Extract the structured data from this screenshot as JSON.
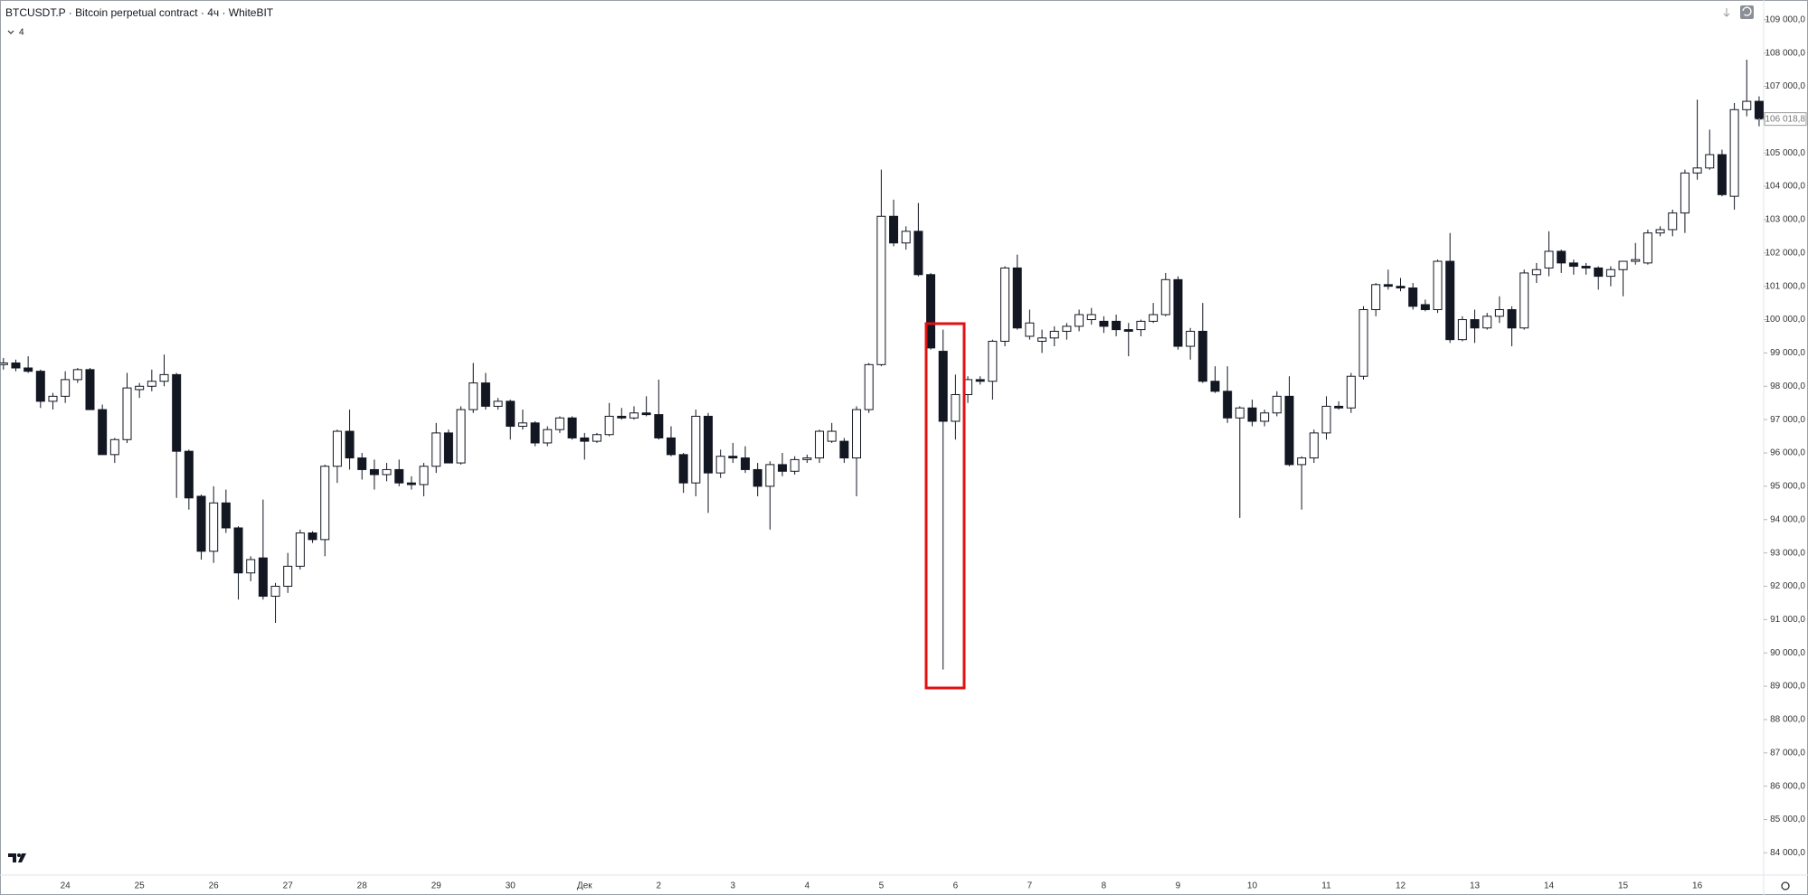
{
  "header": {
    "title": "BTCUSDT.P · Bitcoin perpetual contract · 4ч · WhiteBIT",
    "indicators": "4"
  },
  "chart_data": {
    "type": "candlestick",
    "grid": false,
    "up_color": "#ffffff",
    "down_color": "#131722",
    "wick_color": "#131722",
    "categories": [
      null,
      null,
      null,
      null,
      null,
      "24",
      null,
      null,
      null,
      null,
      null,
      "25",
      null,
      null,
      null,
      null,
      null,
      "26",
      null,
      null,
      null,
      null,
      null,
      "27",
      null,
      null,
      null,
      null,
      null,
      "28",
      null,
      null,
      null,
      null,
      null,
      "29",
      null,
      null,
      null,
      null,
      null,
      "30",
      null,
      null,
      null,
      null,
      null,
      "Дек",
      null,
      null,
      null,
      null,
      null,
      "2",
      null,
      null,
      null,
      null,
      null,
      "3",
      null,
      null,
      null,
      null,
      null,
      "4",
      null,
      null,
      null,
      null,
      null,
      "5",
      null,
      null,
      null,
      null,
      null,
      "6",
      null,
      null,
      null,
      null,
      null,
      "7",
      null,
      null,
      null,
      null,
      null,
      "8",
      null,
      null,
      null,
      null,
      null,
      "9",
      null,
      null,
      null,
      null,
      null,
      "10",
      null,
      null,
      null,
      null,
      null,
      "11",
      null,
      null,
      null,
      null,
      null,
      "12",
      null,
      null,
      null,
      null,
      null,
      "13",
      null,
      null,
      null,
      null,
      null,
      "14",
      null,
      null,
      null,
      null,
      null,
      "15",
      null,
      null,
      null,
      null,
      null,
      "16",
      null,
      null,
      null,
      null,
      null
    ],
    "ohlc": [
      [
        98650,
        98850,
        98500,
        98700
      ],
      [
        98700,
        98800,
        98450,
        98550
      ],
      [
        98550,
        98900,
        98400,
        98450
      ],
      [
        98450,
        98500,
        97350,
        97550
      ],
      [
        97550,
        97800,
        97300,
        97700
      ],
      [
        97700,
        98450,
        97500,
        98200
      ],
      [
        98200,
        98550,
        98100,
        98500
      ],
      [
        98500,
        98550,
        97300,
        97300
      ],
      [
        97300,
        97450,
        95950,
        95950
      ],
      [
        95950,
        96450,
        95700,
        96400
      ],
      [
        96400,
        98400,
        96300,
        97950
      ],
      [
        97900,
        98100,
        97650,
        98000
      ],
      [
        98000,
        98500,
        97850,
        98150
      ],
      [
        98150,
        98950,
        98000,
        98350
      ],
      [
        98350,
        98400,
        94650,
        96050
      ],
      [
        96050,
        96100,
        94300,
        94650
      ],
      [
        94700,
        94750,
        92800,
        93050
      ],
      [
        93050,
        95000,
        92700,
        94500
      ],
      [
        94500,
        94900,
        93600,
        93750
      ],
      [
        93750,
        93800,
        91600,
        92400
      ],
      [
        92400,
        92900,
        92150,
        92800
      ],
      [
        92850,
        94600,
        91600,
        91700
      ],
      [
        91700,
        92100,
        90900,
        92000
      ],
      [
        92000,
        93000,
        91800,
        92600
      ],
      [
        92600,
        93700,
        92500,
        93600
      ],
      [
        93600,
        93650,
        93300,
        93400
      ],
      [
        93400,
        95650,
        92900,
        95600
      ],
      [
        95600,
        96700,
        95100,
        96650
      ],
      [
        96650,
        97300,
        95500,
        95850
      ],
      [
        95850,
        96000,
        95200,
        95500
      ],
      [
        95500,
        95800,
        94900,
        95350
      ],
      [
        95350,
        95700,
        95150,
        95500
      ],
      [
        95500,
        95800,
        95000,
        95100
      ],
      [
        95100,
        95300,
        94900,
        95050
      ],
      [
        95050,
        95700,
        94700,
        95600
      ],
      [
        95600,
        96900,
        95400,
        96600
      ],
      [
        96600,
        96700,
        95700,
        95700
      ],
      [
        95700,
        97400,
        95650,
        97300
      ],
      [
        97300,
        98700,
        97200,
        98100
      ],
      [
        98100,
        98400,
        97300,
        97400
      ],
      [
        97400,
        97650,
        97300,
        97550
      ],
      [
        97550,
        97600,
        96400,
        96800
      ],
      [
        96800,
        97300,
        96700,
        96900
      ],
      [
        96900,
        96950,
        96200,
        96300
      ],
      [
        96300,
        96800,
        96200,
        96700
      ],
      [
        96700,
        97100,
        96600,
        97050
      ],
      [
        97050,
        97100,
        96400,
        96450
      ],
      [
        96450,
        96600,
        95800,
        96350
      ],
      [
        96350,
        96600,
        96300,
        96550
      ],
      [
        96550,
        97500,
        96500,
        97100
      ],
      [
        97100,
        97350,
        97000,
        97050
      ],
      [
        97050,
        97400,
        97000,
        97200
      ],
      [
        97200,
        97700,
        97100,
        97150
      ],
      [
        97150,
        98200,
        96400,
        96450
      ],
      [
        96450,
        96800,
        95900,
        95950
      ],
      [
        95950,
        96000,
        94800,
        95100
      ],
      [
        95100,
        97300,
        94700,
        97100
      ],
      [
        97100,
        97200,
        94200,
        95400
      ],
      [
        95400,
        96100,
        95250,
        95900
      ],
      [
        95900,
        96300,
        95700,
        95850
      ],
      [
        95850,
        96200,
        95400,
        95500
      ],
      [
        95500,
        95700,
        94700,
        95000
      ],
      [
        95000,
        95750,
        93700,
        95650
      ],
      [
        95650,
        96000,
        95300,
        95450
      ],
      [
        95450,
        95900,
        95350,
        95800
      ],
      [
        95800,
        95950,
        95700,
        95850
      ],
      [
        95850,
        96700,
        95700,
        96650
      ],
      [
        96350,
        96900,
        96300,
        96650
      ],
      [
        96350,
        96450,
        95700,
        95850
      ],
      [
        95850,
        97400,
        94700,
        97300
      ],
      [
        97300,
        98700,
        97200,
        98650
      ],
      [
        98650,
        104500,
        98600,
        103100
      ],
      [
        103100,
        103600,
        102200,
        102300
      ],
      [
        102300,
        102800,
        102100,
        102650
      ],
      [
        102650,
        103500,
        101300,
        101350
      ],
      [
        101350,
        101400,
        99100,
        99150
      ],
      [
        99050,
        99700,
        89500,
        96950
      ],
      [
        96950,
        98350,
        96400,
        97750
      ],
      [
        97750,
        98300,
        97500,
        98200
      ],
      [
        98200,
        98300,
        98050,
        98150
      ],
      [
        98150,
        99400,
        97600,
        99350
      ],
      [
        99350,
        101600,
        99200,
        101550
      ],
      [
        101550,
        101950,
        99700,
        99750
      ],
      [
        99500,
        100300,
        99400,
        99900
      ],
      [
        99350,
        99700,
        99000,
        99450
      ],
      [
        99450,
        99800,
        99200,
        99650
      ],
      [
        99650,
        99900,
        99400,
        99800
      ],
      [
        99800,
        100300,
        99650,
        100150
      ],
      [
        100000,
        100350,
        99850,
        100150
      ],
      [
        99950,
        100100,
        99600,
        99800
      ],
      [
        99950,
        100150,
        99500,
        99700
      ],
      [
        99700,
        99900,
        98900,
        99650
      ],
      [
        99700,
        100000,
        99500,
        99950
      ],
      [
        99950,
        100500,
        99900,
        100150
      ],
      [
        100150,
        101400,
        100100,
        101200
      ],
      [
        101200,
        101300,
        99100,
        99200
      ],
      [
        99200,
        99750,
        98800,
        99650
      ],
      [
        99650,
        100500,
        98100,
        98150
      ],
      [
        98150,
        98600,
        97800,
        97850
      ],
      [
        97850,
        98600,
        96900,
        97050
      ],
      [
        97050,
        97400,
        94050,
        97350
      ],
      [
        97350,
        97600,
        96800,
        96950
      ],
      [
        96950,
        97300,
        96800,
        97200
      ],
      [
        97200,
        97850,
        97100,
        97700
      ],
      [
        97700,
        98300,
        95600,
        95650
      ],
      [
        95650,
        95900,
        94300,
        95850
      ],
      [
        95850,
        96700,
        95700,
        96600
      ],
      [
        96600,
        97700,
        96400,
        97400
      ],
      [
        97400,
        97550,
        97300,
        97350
      ],
      [
        97350,
        98400,
        97200,
        98300
      ],
      [
        98300,
        100400,
        98200,
        100300
      ],
      [
        100300,
        101100,
        100100,
        101050
      ],
      [
        101050,
        101500,
        100900,
        101000
      ],
      [
        101000,
        101250,
        100850,
        100950
      ],
      [
        100950,
        101100,
        100300,
        100400
      ],
      [
        100450,
        100600,
        100250,
        100300
      ],
      [
        100300,
        101800,
        100200,
        101750
      ],
      [
        101750,
        102600,
        99300,
        99400
      ],
      [
        99400,
        100100,
        99350,
        100000
      ],
      [
        100000,
        100300,
        99300,
        99750
      ],
      [
        99750,
        100200,
        99700,
        100100
      ],
      [
        100100,
        100700,
        99900,
        100300
      ],
      [
        100300,
        100400,
        99200,
        99750
      ],
      [
        99750,
        101500,
        99700,
        101400
      ],
      [
        101350,
        101700,
        101100,
        101500
      ],
      [
        101550,
        102650,
        101300,
        102050
      ],
      [
        102050,
        102100,
        101400,
        101700
      ],
      [
        101700,
        101800,
        101350,
        101600
      ],
      [
        101600,
        101700,
        101350,
        101550
      ],
      [
        101550,
        101600,
        100900,
        101300
      ],
      [
        101300,
        101600,
        101000,
        101500
      ],
      [
        101500,
        101750,
        100700,
        101750
      ],
      [
        101750,
        102300,
        101650,
        101800
      ],
      [
        101700,
        102700,
        101650,
        102600
      ],
      [
        102600,
        102800,
        102500,
        102700
      ],
      [
        102700,
        103300,
        102500,
        103200
      ],
      [
        103200,
        104500,
        102600,
        104400
      ],
      [
        104400,
        106600,
        104200,
        104550
      ],
      [
        104550,
        105700,
        104500,
        104950
      ],
      [
        104950,
        105100,
        103700,
        103750
      ],
      [
        103700,
        106500,
        103300,
        106300
      ],
      [
        106300,
        107800,
        106100,
        106550
      ],
      [
        106550,
        106700,
        105800,
        106018.8
      ]
    ],
    "ylim": [
      83360,
      109590
    ],
    "yticks": [
      {
        "value": 84000,
        "label": "84 000,0"
      },
      {
        "value": 85000,
        "label": "85 000,0"
      },
      {
        "value": 86000,
        "label": "86 000,0"
      },
      {
        "value": 87000,
        "label": "87 000,0"
      },
      {
        "value": 88000,
        "label": "88 000,0"
      },
      {
        "value": 89000,
        "label": "89 000,0"
      },
      {
        "value": 90000,
        "label": "90 000,0"
      },
      {
        "value": 91000,
        "label": "91 000,0"
      },
      {
        "value": 92000,
        "label": "92 000,0"
      },
      {
        "value": 93000,
        "label": "93 000,0"
      },
      {
        "value": 94000,
        "label": "94 000,0"
      },
      {
        "value": 95000,
        "label": "95 000,0"
      },
      {
        "value": 96000,
        "label": "96 000,0"
      },
      {
        "value": 97000,
        "label": "97 000,0"
      },
      {
        "value": 98000,
        "label": "98 000,0"
      },
      {
        "value": 99000,
        "label": "99 000,0"
      },
      {
        "value": 100000,
        "label": "100 000,0"
      },
      {
        "value": 101000,
        "label": "101 000,0"
      },
      {
        "value": 102000,
        "label": "102 000,0"
      },
      {
        "value": 103000,
        "label": "103 000,0"
      },
      {
        "value": 104000,
        "label": "104 000,0"
      },
      {
        "value": 105000,
        "label": "105 000,0"
      },
      {
        "value": 106000,
        "label": "106 000,0"
      },
      {
        "value": 107000,
        "label": "107 000,0"
      },
      {
        "value": 108000,
        "label": "108 000,0"
      },
      {
        "value": 109000,
        "label": "109 000,0"
      }
    ],
    "last_price": {
      "value": 106018.8,
      "label": "106 018,8"
    }
  }
}
